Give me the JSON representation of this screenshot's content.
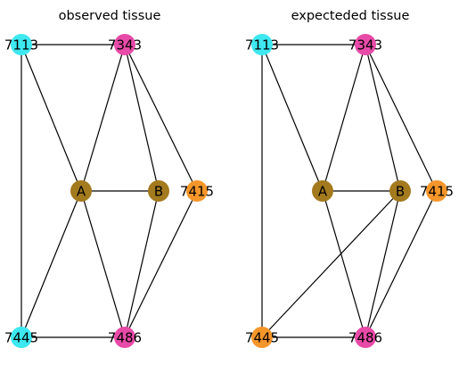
{
  "panels": [
    {
      "title": "observed tissue",
      "nodes": [
        {
          "id": "7113",
          "label": "7113",
          "color": "#3de8f0"
        },
        {
          "id": "7343",
          "label": "7343",
          "color": "#e84aa8"
        },
        {
          "id": "A",
          "label": "A",
          "color": "#a37a1e"
        },
        {
          "id": "B",
          "label": "B",
          "color": "#a37a1e"
        },
        {
          "id": "7415",
          "label": "7415",
          "color": "#f5962a"
        },
        {
          "id": "7445",
          "label": "7445",
          "color": "#3de8f0"
        },
        {
          "id": "7486",
          "label": "7486",
          "color": "#e84aa8"
        }
      ],
      "edges": [
        [
          "7113",
          "7343"
        ],
        [
          "7113",
          "A"
        ],
        [
          "7113",
          "7445"
        ],
        [
          "7343",
          "A"
        ],
        [
          "7343",
          "B"
        ],
        [
          "7343",
          "7415"
        ],
        [
          "A",
          "B"
        ],
        [
          "A",
          "7445"
        ],
        [
          "A",
          "7486"
        ],
        [
          "B",
          "7486"
        ],
        [
          "7415",
          "7486"
        ],
        [
          "7445",
          "7486"
        ]
      ]
    },
    {
      "title": "expecteded tissue",
      "nodes": [
        {
          "id": "7113",
          "label": "7113",
          "color": "#3de8f0"
        },
        {
          "id": "7343",
          "label": "7343",
          "color": "#e84aa8"
        },
        {
          "id": "A",
          "label": "A",
          "color": "#a37a1e"
        },
        {
          "id": "B",
          "label": "B",
          "color": "#a37a1e"
        },
        {
          "id": "7415",
          "label": "7415",
          "color": "#f5962a"
        },
        {
          "id": "7445",
          "label": "7445",
          "color": "#f5962a"
        },
        {
          "id": "7486",
          "label": "7486",
          "color": "#e84aa8"
        }
      ],
      "edges": [
        [
          "7113",
          "7343"
        ],
        [
          "7113",
          "A"
        ],
        [
          "7113",
          "7445"
        ],
        [
          "7343",
          "A"
        ],
        [
          "7343",
          "B"
        ],
        [
          "7343",
          "7415"
        ],
        [
          "A",
          "B"
        ],
        [
          "A",
          "7486"
        ],
        [
          "B",
          "7445"
        ],
        [
          "B",
          "7486"
        ],
        [
          "7415",
          "7486"
        ],
        [
          "7445",
          "7486"
        ]
      ]
    }
  ]
}
